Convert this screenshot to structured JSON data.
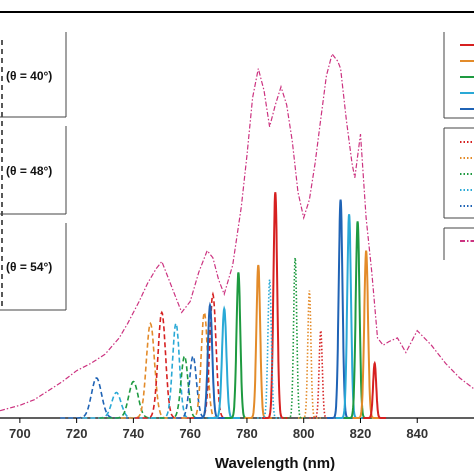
{
  "chart_data": {
    "type": "line",
    "xlabel": "Wavelength (nm)",
    "ylabel": "",
    "title": "",
    "xlim": [
      693,
      860
    ],
    "ylim": [
      0,
      1
    ],
    "xticks": [
      700,
      720,
      740,
      760,
      780,
      800,
      820,
      840
    ],
    "grid": false,
    "legend_position": "right",
    "group_labels": [
      "(θ = 40°)",
      "(θ = 48°)",
      "(θ = 54°)"
    ],
    "envelope": {
      "style": "dash-dot",
      "color": "#cc3380",
      "x": [
        693,
        700,
        705,
        710,
        715,
        720,
        725,
        730,
        735,
        738,
        742,
        745,
        748,
        750,
        752,
        755,
        757,
        760,
        763,
        766,
        768,
        770,
        772,
        775,
        778,
        780,
        782,
        784,
        786,
        788,
        790,
        792,
        794,
        796,
        798,
        800,
        802,
        804,
        806,
        808,
        810,
        812,
        813,
        815,
        817,
        818,
        820,
        822,
        824,
        826,
        828,
        830,
        833,
        836,
        840,
        845,
        850,
        855,
        860
      ],
      "y": [
        0.02,
        0.035,
        0.05,
        0.075,
        0.1,
        0.13,
        0.15,
        0.175,
        0.22,
        0.26,
        0.32,
        0.37,
        0.41,
        0.43,
        0.39,
        0.33,
        0.29,
        0.32,
        0.4,
        0.46,
        0.44,
        0.38,
        0.34,
        0.42,
        0.58,
        0.72,
        0.88,
        0.96,
        0.9,
        0.8,
        0.86,
        0.91,
        0.86,
        0.76,
        0.62,
        0.55,
        0.6,
        0.7,
        0.82,
        0.94,
        1.0,
        0.98,
        0.96,
        0.82,
        0.7,
        0.66,
        0.78,
        0.55,
        0.4,
        0.22,
        0.2,
        0.21,
        0.22,
        0.18,
        0.24,
        0.2,
        0.15,
        0.11,
        0.08
      ]
    },
    "series": [
      {
        "style": "dashed",
        "color": "#1f63b5",
        "center": 727,
        "peak": 0.11,
        "width": 3.2
      },
      {
        "style": "dashed",
        "color": "#2aa9d6",
        "center": 734,
        "peak": 0.07,
        "width": 3.0
      },
      {
        "style": "dashed",
        "color": "#1e9a40",
        "center": 740,
        "peak": 0.1,
        "width": 3.0
      },
      {
        "style": "dashed",
        "color": "#e38b2a",
        "center": 746,
        "peak": 0.26,
        "width": 2.6
      },
      {
        "style": "dashed",
        "color": "#d62020",
        "center": 750,
        "peak": 0.29,
        "width": 2.4
      },
      {
        "style": "dashed",
        "color": "#2aa9d6",
        "center": 755,
        "peak": 0.26,
        "width": 2.2
      },
      {
        "style": "dashed",
        "color": "#1e9a40",
        "center": 758,
        "peak": 0.17,
        "width": 2.2
      },
      {
        "style": "dashed",
        "color": "#1f63b5",
        "center": 761,
        "peak": 0.17,
        "width": 2.2
      },
      {
        "style": "dashed",
        "color": "#e38b2a",
        "center": 765,
        "peak": 0.29,
        "width": 2.0
      },
      {
        "style": "dashed",
        "color": "#d62020",
        "center": 768,
        "peak": 0.34,
        "width": 2.0
      },
      {
        "style": "solid",
        "color": "#1f63b5",
        "center": 767,
        "peak": 0.31,
        "width": 1.4
      },
      {
        "style": "solid",
        "color": "#2aa9d6",
        "center": 772,
        "peak": 0.3,
        "width": 1.4
      },
      {
        "style": "solid",
        "color": "#1e9a40",
        "center": 777,
        "peak": 0.4,
        "width": 1.2
      },
      {
        "style": "solid",
        "color": "#e38b2a",
        "center": 784,
        "peak": 0.42,
        "width": 1.2
      },
      {
        "style": "solid",
        "color": "#d62020",
        "center": 790,
        "peak": 0.62,
        "width": 1.2
      },
      {
        "style": "dotted",
        "color": "#2aa9d6",
        "center": 788,
        "peak": 0.38,
        "width": 1.1
      },
      {
        "style": "dotted",
        "color": "#1e9a40",
        "center": 797,
        "peak": 0.44,
        "width": 1.0
      },
      {
        "style": "dotted",
        "color": "#e38b2a",
        "center": 802,
        "peak": 0.35,
        "width": 1.0
      },
      {
        "style": "dotted",
        "color": "#d62020",
        "center": 806,
        "peak": 0.24,
        "width": 1.0
      },
      {
        "style": "solid",
        "color": "#1f63b5",
        "center": 813,
        "peak": 0.6,
        "width": 1.2
      },
      {
        "style": "solid",
        "color": "#2aa9d6",
        "center": 816,
        "peak": 0.56,
        "width": 1.2
      },
      {
        "style": "solid",
        "color": "#1e9a40",
        "center": 819,
        "peak": 0.54,
        "width": 1.2
      },
      {
        "style": "solid",
        "color": "#e38b2a",
        "center": 822,
        "peak": 0.46,
        "width": 1.2
      },
      {
        "style": "solid",
        "color": "#d62020",
        "center": 825,
        "peak": 0.15,
        "width": 1.0
      }
    ],
    "legend_items": [
      {
        "style": "solid",
        "color": "#d62020"
      },
      {
        "style": "solid",
        "color": "#e38b2a"
      },
      {
        "style": "solid",
        "color": "#1e9a40"
      },
      {
        "style": "solid",
        "color": "#2aa9d6"
      },
      {
        "style": "solid",
        "color": "#1f63b5"
      },
      {
        "style": "dotted",
        "color": "#d62020"
      },
      {
        "style": "dotted",
        "color": "#e38b2a"
      },
      {
        "style": "dotted",
        "color": "#1e9a40"
      },
      {
        "style": "dotted",
        "color": "#2aa9d6"
      },
      {
        "style": "dotted",
        "color": "#1f63b5"
      },
      {
        "style": "dash-dot",
        "color": "#cc3380"
      }
    ]
  }
}
